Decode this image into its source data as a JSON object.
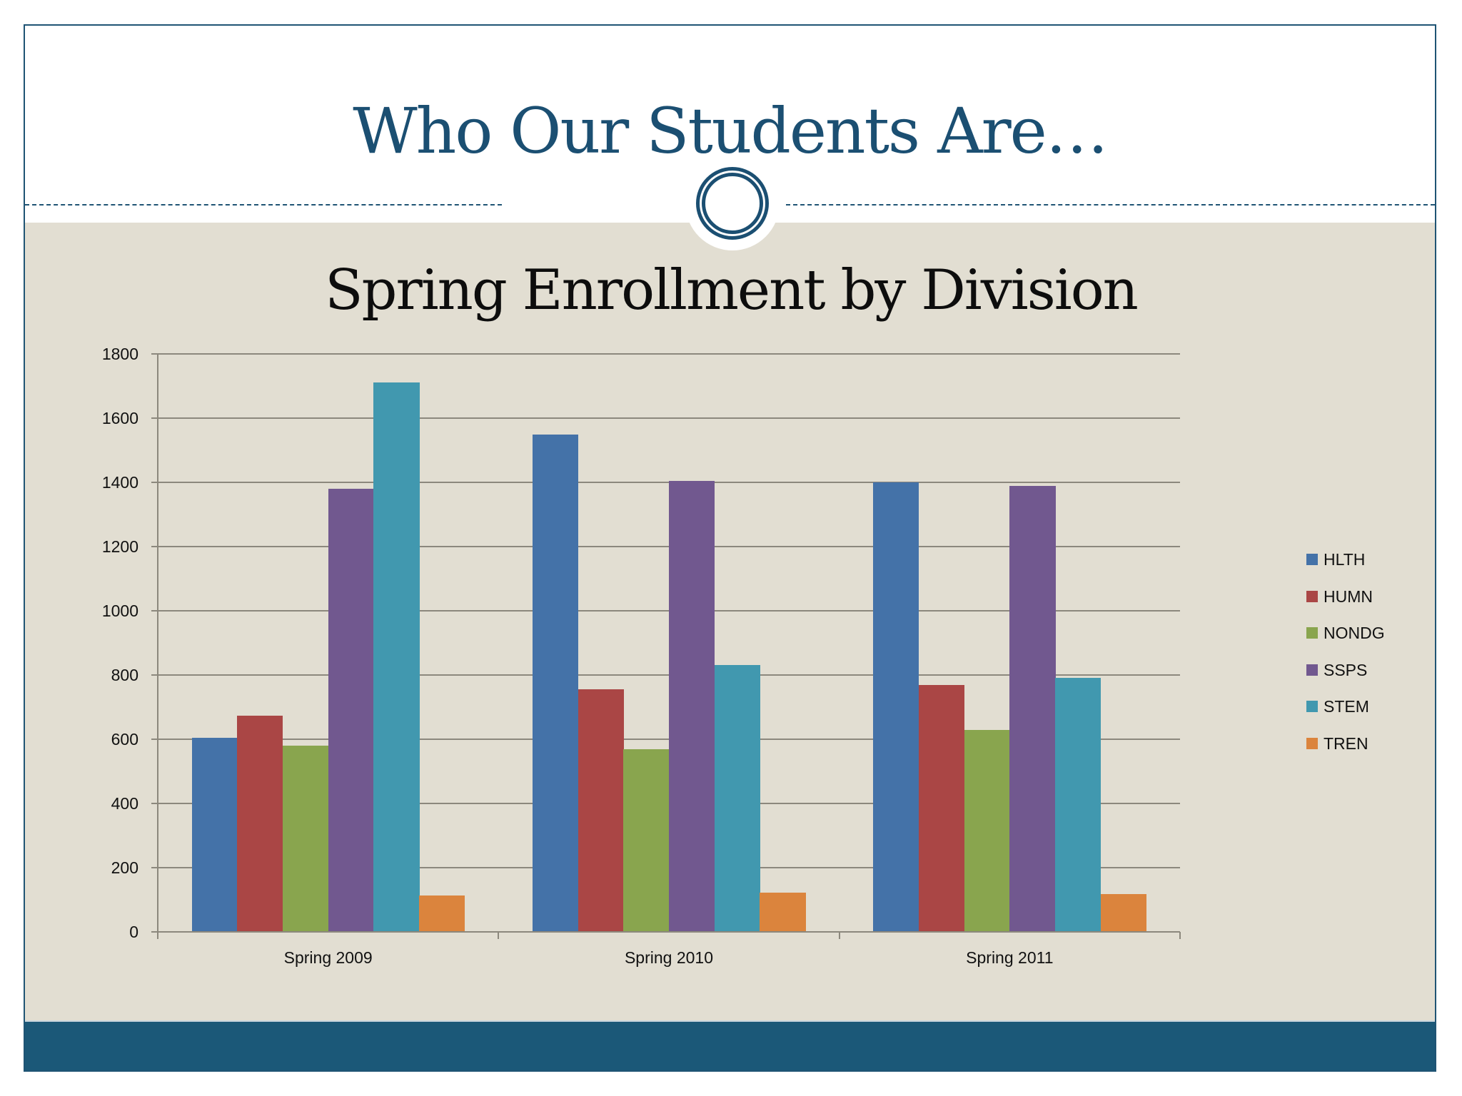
{
  "slide": {
    "title": "Who Our Students Are…",
    "colors": {
      "title": "#1b4f72",
      "frame": "#1f5474",
      "panel": "#e2ded2",
      "footer": "#1b5878",
      "grid": "#8c887d"
    }
  },
  "chart_data": {
    "type": "bar",
    "title": "Spring Enrollment by Division",
    "xlabel": "",
    "ylabel": "",
    "ylim": [
      0,
      1800
    ],
    "yticks": [
      0,
      200,
      400,
      600,
      800,
      1000,
      1200,
      1400,
      1600,
      1800
    ],
    "grid": true,
    "legend_position": "right",
    "categories": [
      "Spring 2009",
      "Spring 2010",
      "Spring 2011"
    ],
    "series": [
      {
        "name": "HLTH",
        "color": "#4472a8",
        "values": [
          604,
          1550,
          1400
        ]
      },
      {
        "name": "HUMN",
        "color": "#aa4645",
        "values": [
          673,
          756,
          768
        ]
      },
      {
        "name": "NONDG",
        "color": "#89a54e",
        "values": [
          580,
          570,
          628
        ]
      },
      {
        "name": "SSPS",
        "color": "#71588f",
        "values": [
          1380,
          1404,
          1390
        ]
      },
      {
        "name": "STEM",
        "color": "#4198af",
        "values": [
          1712,
          831,
          791
        ]
      },
      {
        "name": "TREN",
        "color": "#db843d",
        "values": [
          113,
          123,
          118
        ]
      }
    ]
  }
}
